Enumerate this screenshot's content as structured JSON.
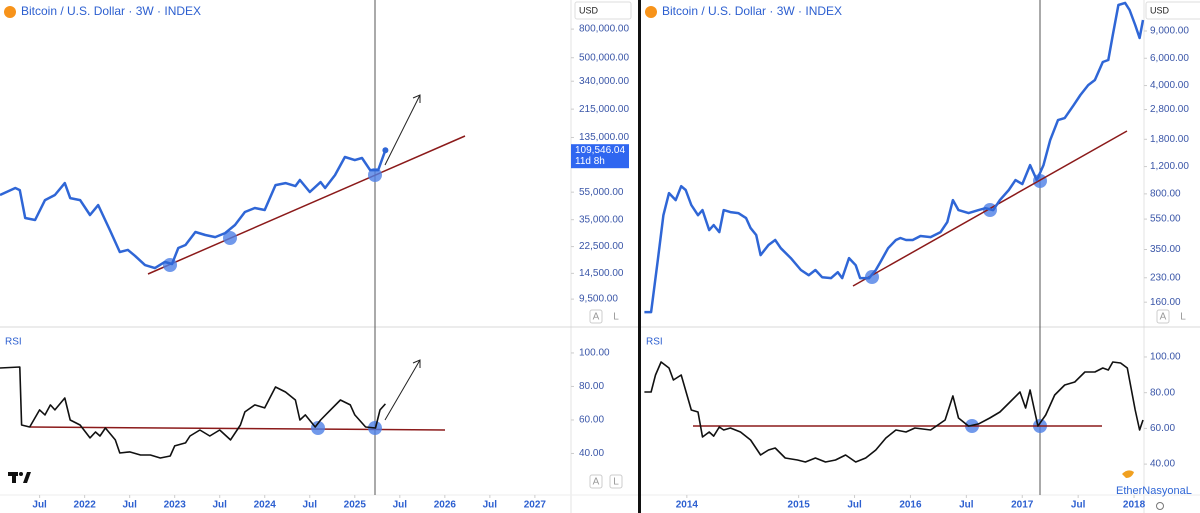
{
  "chart_data": [
    {
      "type": "line",
      "title": "Bitcoin / U.S. Dollar · 3W · INDEX",
      "currency": "USD",
      "log": true,
      "color": "#2f66d6",
      "last_price_label": "109,546.04",
      "countdown": "11d 8h",
      "xlim": [
        2021.06,
        2027.39
      ],
      "ylim": [
        6210,
        1290000
      ],
      "yticks": [
        {
          "value": 800000,
          "label": "800,000.00"
        },
        {
          "value": 500000,
          "label": "500,000.00"
        },
        {
          "value": 340000,
          "label": "340,000.00"
        },
        {
          "value": 215000,
          "label": "215,000.00"
        },
        {
          "value": 135000,
          "label": "135,000.00"
        },
        {
          "value": 55000,
          "label": "55,000.00"
        },
        {
          "value": 35000,
          "label": "35,000.00"
        },
        {
          "value": 22500,
          "label": "22,500.00"
        },
        {
          "value": 14500,
          "label": "14,500.00"
        },
        {
          "value": 9500,
          "label": "9,500.00"
        }
      ],
      "x": [
        2021.06,
        2021.23,
        2021.28,
        2021.34,
        2021.45,
        2021.56,
        2021.67,
        2021.78,
        2021.84,
        2021.95,
        2022.06,
        2022.15,
        2022.28,
        2022.39,
        2022.48,
        2022.56,
        2022.67,
        2022.78,
        2022.89,
        2022.97,
        2023.04,
        2023.12,
        2023.23,
        2023.34,
        2023.45,
        2023.56,
        2023.67,
        2023.78,
        2023.89,
        2024.0,
        2024.12,
        2024.23,
        2024.34,
        2024.39,
        2024.5,
        2024.62,
        2024.67,
        2024.78,
        2024.89,
        2025.0,
        2025.08,
        2025.17,
        2025.26,
        2025.34
      ],
      "values": [
        52500,
        58900,
        56900,
        36000,
        34800,
        48300,
        52500,
        63800,
        49900,
        48300,
        37800,
        44500,
        29500,
        20600,
        21300,
        19300,
        16600,
        15800,
        17500,
        16900,
        22000,
        23100,
        28600,
        27200,
        26300,
        28100,
        32100,
        39700,
        42400,
        41000,
        61800,
        63800,
        60800,
        67100,
        55100,
        64900,
        58900,
        72800,
        97900,
        93100,
        96300,
        79000,
        79000,
        109546.04
      ]
    },
    {
      "type": "line",
      "title": "RSI",
      "color": "#111111",
      "xlim": [
        2021.06,
        2027.39
      ],
      "ylim": [
        15.2,
        113.7
      ],
      "yticks": [
        {
          "value": 100,
          "label": "100.00"
        },
        {
          "value": 80,
          "label": "80.00"
        },
        {
          "value": 60,
          "label": "60.00"
        },
        {
          "value": 40,
          "label": "40.00"
        }
      ],
      "xticks": [
        {
          "value": 2021.5,
          "label": "Jul"
        },
        2022,
        {
          "value": 2022.5,
          "label": "Jul"
        },
        2023,
        {
          "value": 2023.5,
          "label": "Jul"
        },
        2024,
        {
          "value": 2024.5,
          "label": "Jul"
        },
        2025,
        {
          "value": 2025.5,
          "label": "Jul"
        },
        2026,
        {
          "value": 2026.5,
          "label": "Jul"
        },
        2027
      ],
      "x": [
        2021.06,
        2021.28,
        2021.3,
        2021.39,
        2021.5,
        2021.56,
        2021.62,
        2021.67,
        2021.78,
        2021.84,
        2021.95,
        2022.06,
        2022.12,
        2022.17,
        2022.23,
        2022.34,
        2022.39,
        2022.5,
        2022.62,
        2022.73,
        2022.84,
        2022.95,
        2023.0,
        2023.12,
        2023.17,
        2023.28,
        2023.39,
        2023.5,
        2023.62,
        2023.73,
        2023.78,
        2023.89,
        2024.0,
        2024.12,
        2024.23,
        2024.34,
        2024.39,
        2024.45,
        2024.56,
        2024.62,
        2024.73,
        2024.84,
        2024.95,
        2025.0,
        2025.12,
        2025.23,
        2025.28,
        2025.34
      ],
      "values": [
        91.0,
        91.6,
        57.0,
        55.8,
        66.0,
        63.0,
        69.0,
        66.0,
        73.1,
        60.0,
        57.0,
        49.3,
        52.8,
        50.4,
        55.2,
        48.1,
        40.3,
        40.9,
        39.1,
        39.1,
        37.3,
        38.5,
        44.5,
        46.3,
        50.4,
        54.0,
        50.4,
        54.0,
        48.1,
        57.0,
        64.8,
        69.0,
        67.2,
        79.7,
        76.7,
        71.9,
        60.0,
        63.0,
        55.8,
        60.0,
        66.0,
        71.9,
        69.0,
        63.0,
        55.8,
        55.2,
        66.0,
        69.6
      ]
    },
    {
      "type": "line",
      "title": "Bitcoin / U.S. Dollar · 3W · INDEX",
      "currency": "USD",
      "log": true,
      "color": "#2f66d6",
      "xlim": [
        2013.59,
        2018.08
      ],
      "ylim": [
        114,
        14260
      ],
      "yticks": [
        {
          "value": 9000,
          "label": "9,000.00"
        },
        {
          "value": 6000,
          "label": "6,000.00"
        },
        {
          "value": 4000,
          "label": "4,000.00"
        },
        {
          "value": 2800,
          "label": "2,800.00"
        },
        {
          "value": 1800,
          "label": "1,800.00"
        },
        {
          "value": 1200,
          "label": "1,200.00"
        },
        {
          "value": 800,
          "label": "800.00"
        },
        {
          "value": 550,
          "label": "550.00"
        },
        {
          "value": 350,
          "label": "350.00"
        },
        {
          "value": 230,
          "label": "230.00"
        },
        {
          "value": 160,
          "label": "160.00"
        }
      ],
      "x": [
        2013.62,
        2013.68,
        2013.74,
        2013.79,
        2013.84,
        2013.9,
        2013.95,
        2013.99,
        2014.04,
        2014.1,
        2014.14,
        2014.2,
        2014.24,
        2014.29,
        2014.33,
        2014.39,
        2014.46,
        2014.53,
        2014.57,
        2014.62,
        2014.66,
        2014.73,
        2014.79,
        2014.84,
        2014.93,
        2015.02,
        2015.09,
        2015.15,
        2015.21,
        2015.29,
        2015.35,
        2015.39,
        2015.45,
        2015.51,
        2015.55,
        2015.63,
        2015.69,
        2015.73,
        2015.8,
        2015.87,
        2015.91,
        2015.96,
        2016.02,
        2016.09,
        2016.18,
        2016.27,
        2016.33,
        2016.38,
        2016.43,
        2016.52,
        2016.61,
        2016.67,
        2016.74,
        2016.8,
        2016.88,
        2016.94,
        2017.0,
        2017.07,
        2017.13,
        2017.19,
        2017.25,
        2017.32,
        2017.38,
        2017.46,
        2017.52,
        2017.59,
        2017.65,
        2017.72,
        2017.77,
        2017.81,
        2017.86,
        2017.92,
        2017.96,
        2018.01,
        2018.05,
        2018.08
      ],
      "values": [
        138,
        138,
        299,
        583,
        809,
        729,
        897,
        847,
        678,
        583,
        629,
        467,
        503,
        453,
        629,
        610,
        601,
        558,
        481,
        434,
        322,
        374,
        403,
        357,
        308,
        258,
        239,
        258,
        232,
        229,
        250,
        229,
        308,
        277,
        229,
        229,
        258,
        290,
        357,
        403,
        415,
        403,
        403,
        428,
        421,
        453,
        526,
        729,
        629,
        601,
        629,
        647,
        629,
        729,
        847,
        982,
        925,
        1227,
        982,
        1227,
        1778,
        2393,
        2466,
        2992,
        3475,
        4027,
        4345,
        5675,
        5848,
        8472,
        13240,
        13650,
        12300,
        9840,
        8110,
        10590
      ]
    },
    {
      "type": "line",
      "title": "RSI",
      "color": "#111111",
      "xlim": [
        2013.59,
        2018.08
      ],
      "ylim": [
        22.7,
        115.1
      ],
      "yticks": [
        {
          "value": 100,
          "label": "100.00"
        },
        {
          "value": 80,
          "label": "80.00"
        },
        {
          "value": 60,
          "label": "60.00"
        },
        {
          "value": 40,
          "label": "40.00"
        }
      ],
      "xticks": [
        2014,
        2015,
        {
          "value": 2015.5,
          "label": "Jul"
        },
        2016,
        {
          "value": 2016.5,
          "label": "Jul"
        },
        2017,
        {
          "value": 2017.5,
          "label": "Jul"
        },
        2018
      ],
      "x": [
        2013.62,
        2013.68,
        2013.72,
        2013.77,
        2013.84,
        2013.88,
        2013.95,
        2014.04,
        2014.1,
        2014.14,
        2014.2,
        2014.24,
        2014.29,
        2014.33,
        2014.39,
        2014.48,
        2014.57,
        2014.66,
        2014.73,
        2014.79,
        2014.88,
        2014.99,
        2015.06,
        2015.15,
        2015.24,
        2015.33,
        2015.42,
        2015.51,
        2015.6,
        2015.69,
        2015.78,
        2015.87,
        2015.96,
        2016.04,
        2016.18,
        2016.31,
        2016.38,
        2016.43,
        2016.52,
        2016.61,
        2016.71,
        2016.8,
        2016.89,
        2016.98,
        2017.03,
        2017.07,
        2017.14,
        2017.21,
        2017.29,
        2017.38,
        2017.47,
        2017.56,
        2017.65,
        2017.72,
        2017.77,
        2017.81,
        2017.88,
        2017.94,
        2018.01,
        2018.05,
        2018.08
      ],
      "values": [
        80.4,
        80.4,
        89.9,
        97.2,
        93.8,
        87.1,
        89.9,
        70.3,
        69.2,
        55.2,
        58.0,
        55.7,
        60.8,
        59.1,
        60.2,
        58.0,
        53.5,
        45.1,
        47.9,
        49.0,
        43.4,
        42.3,
        41.2,
        43.4,
        41.2,
        42.3,
        45.1,
        41.2,
        43.4,
        47.9,
        54.6,
        59.1,
        58.0,
        60.2,
        59.1,
        64.7,
        78.2,
        65.8,
        61.3,
        62.5,
        65.8,
        69.2,
        74.8,
        80.4,
        71.4,
        81.5,
        61.3,
        67.5,
        78.7,
        84.3,
        86.0,
        91.6,
        91.6,
        93.8,
        92.7,
        97.2,
        96.6,
        93.8,
        70.3,
        59.1,
        64.7
      ]
    }
  ],
  "buttons": [
    "A",
    "L"
  ],
  "watermark": "EtherNasyonaL"
}
